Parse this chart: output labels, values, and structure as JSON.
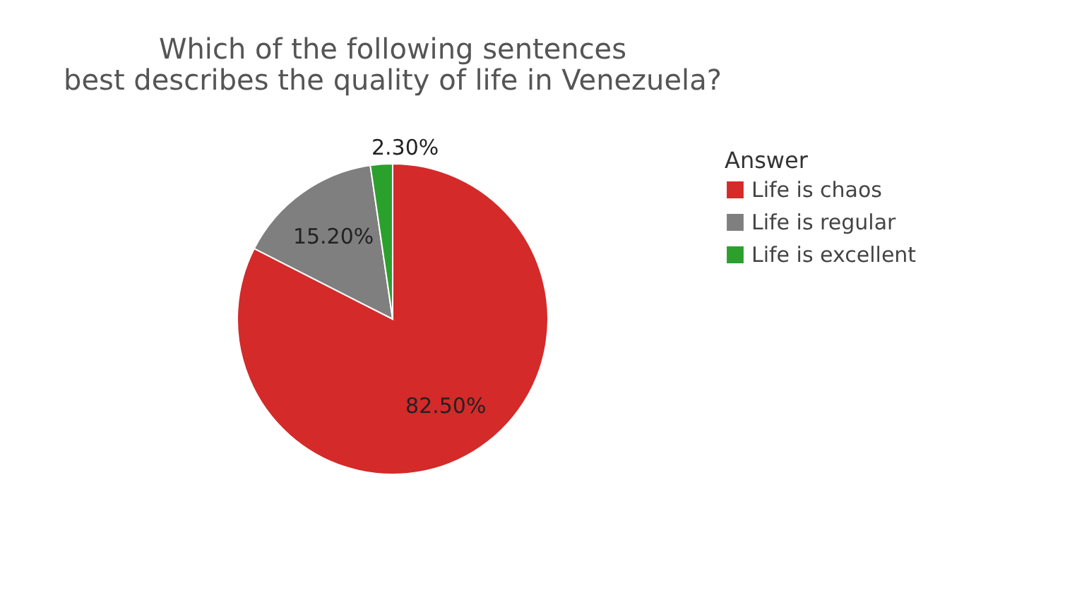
{
  "chart_data": {
    "type": "pie",
    "title": [
      "Which of the following sentences",
      "best describes the quality of life in Venezuela?"
    ],
    "legend_title": "Answer",
    "legend": "right",
    "categories": [
      "Life is chaos",
      "Life is regular",
      "Life is excellent"
    ],
    "values": [
      82.5,
      15.2,
      2.3
    ],
    "colors": [
      "#d42a2a",
      "#7f7f7f",
      "#2ca02c"
    ],
    "value_labels": [
      "82.50%",
      "15.20%",
      "2.30%"
    ]
  }
}
